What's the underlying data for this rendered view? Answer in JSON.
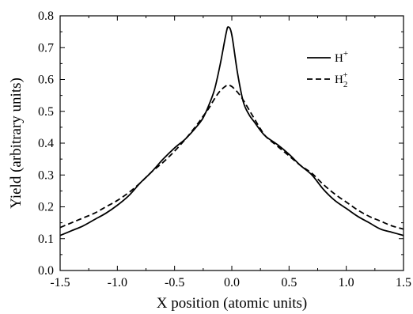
{
  "chart_data": {
    "type": "line",
    "xlabel": "X position (atomic units)",
    "ylabel": "Yield (arbitrary units)",
    "xlim": [
      -1.5,
      1.5
    ],
    "ylim": [
      0.0,
      0.8
    ],
    "xticks": [
      "-1.5",
      "-1.0",
      "-0.5",
      "0.0",
      "0.5",
      "1.0",
      "1.5"
    ],
    "yticks": [
      "0.0",
      "0.1",
      "0.2",
      "0.3",
      "0.4",
      "0.5",
      "0.6",
      "0.7",
      "0.8"
    ],
    "grid": false,
    "legend_position": "top-right",
    "series": [
      {
        "name": "H+",
        "legend_base": "H",
        "legend_sup": "+",
        "legend_sub": "",
        "style": "solid",
        "color": "#000000",
        "x": [
          -1.5,
          -1.4,
          -1.3,
          -1.2,
          -1.1,
          -1.0,
          -0.9,
          -0.8,
          -0.7,
          -0.6,
          -0.5,
          -0.4,
          -0.3,
          -0.25,
          -0.2,
          -0.15,
          -0.1,
          -0.05,
          -0.03,
          0.0,
          0.05,
          0.1,
          0.15,
          0.2,
          0.25,
          0.3,
          0.4,
          0.5,
          0.6,
          0.7,
          0.8,
          0.9,
          1.0,
          1.1,
          1.2,
          1.3,
          1.4,
          1.5
        ],
        "y": [
          0.11,
          0.125,
          0.14,
          0.16,
          0.18,
          0.205,
          0.235,
          0.275,
          0.31,
          0.35,
          0.385,
          0.415,
          0.455,
          0.48,
          0.52,
          0.57,
          0.65,
          0.745,
          0.765,
          0.74,
          0.62,
          0.53,
          0.49,
          0.465,
          0.44,
          0.42,
          0.395,
          0.365,
          0.33,
          0.3,
          0.255,
          0.22,
          0.195,
          0.17,
          0.15,
          0.13,
          0.12,
          0.11
        ]
      },
      {
        "name": "H2+",
        "legend_base": "H",
        "legend_sup": "+",
        "legend_sub": "2",
        "style": "dashed",
        "color": "#000000",
        "x": [
          -1.5,
          -1.4,
          -1.3,
          -1.2,
          -1.1,
          -1.0,
          -0.9,
          -0.8,
          -0.7,
          -0.6,
          -0.5,
          -0.4,
          -0.3,
          -0.25,
          -0.2,
          -0.15,
          -0.1,
          -0.05,
          -0.03,
          0.0,
          0.05,
          0.1,
          0.15,
          0.2,
          0.25,
          0.3,
          0.4,
          0.5,
          0.6,
          0.7,
          0.8,
          0.9,
          1.0,
          1.1,
          1.2,
          1.3,
          1.4,
          1.5
        ],
        "y": [
          0.135,
          0.15,
          0.165,
          0.18,
          0.2,
          0.22,
          0.245,
          0.275,
          0.31,
          0.34,
          0.375,
          0.415,
          0.46,
          0.485,
          0.51,
          0.54,
          0.565,
          0.58,
          0.582,
          0.578,
          0.56,
          0.535,
          0.505,
          0.475,
          0.445,
          0.42,
          0.39,
          0.36,
          0.33,
          0.305,
          0.27,
          0.24,
          0.215,
          0.19,
          0.17,
          0.155,
          0.14,
          0.13
        ]
      }
    ]
  }
}
